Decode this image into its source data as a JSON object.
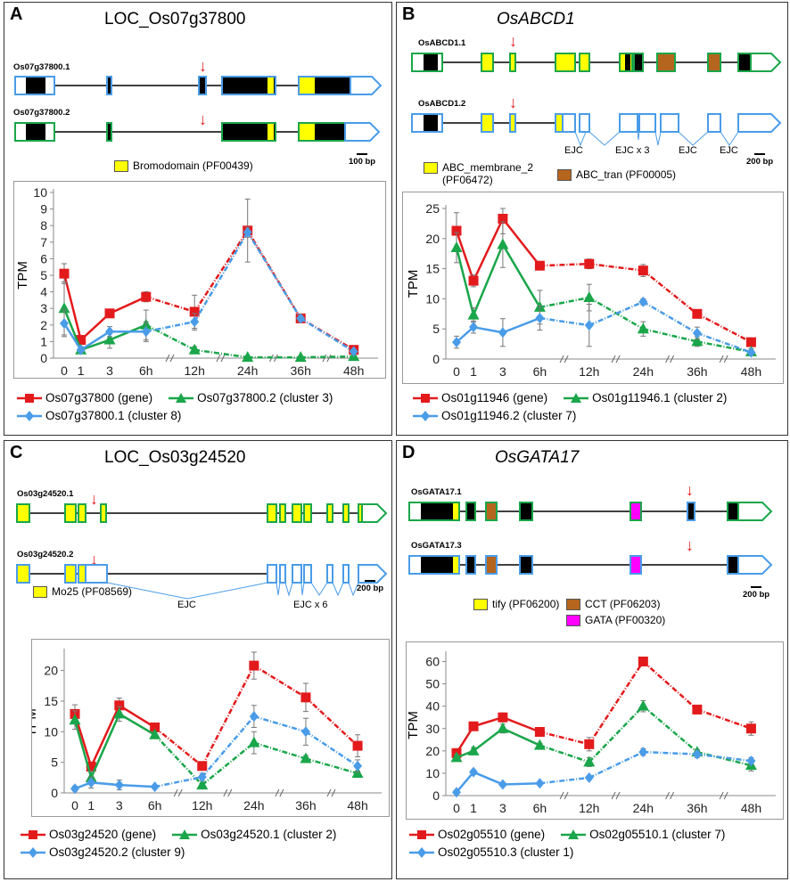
{
  "panels": [
    {
      "label": "A",
      "title": "LOC_Os07g37800",
      "title_italic": false,
      "transcripts": [
        "Os07g37800.1",
        "Os07g37800.2"
      ],
      "domains": [
        {
          "name": "Bromodomain (PF00439)",
          "color": "#ffff00"
        }
      ],
      "scale": "100 bp",
      "ejc_labels": [],
      "chart_data": {
        "type": "line",
        "ylabel": "TPM",
        "ylim": [
          0,
          10
        ],
        "yticks": [
          0,
          1,
          2,
          3,
          4,
          5,
          6,
          7,
          8,
          9,
          10
        ],
        "xtick_labels": [
          "0",
          "1",
          "3",
          "6h",
          "12h",
          "24h",
          "36h",
          "48h"
        ],
        "series": [
          {
            "name": "Os07g37800 (gene)",
            "color": "#e31a1c",
            "marker": "square",
            "values": [
              5.1,
              1.1,
              2.7,
              3.7,
              2.8,
              7.7,
              2.4,
              0.5
            ],
            "errors": [
              0.6,
              0.2,
              0.2,
              0.3,
              1.0,
              1.9,
              0.2,
              0.1
            ]
          },
          {
            "name": "Os07g37800.2 (cluster 3)",
            "color": "#1aa64a",
            "marker": "triangle",
            "values": [
              3.0,
              0.5,
              1.1,
              2.0,
              0.5,
              0.05,
              0.05,
              0.1
            ],
            "errors": [
              1.6,
              0.2,
              0.5,
              0.9,
              0.2,
              0.02,
              0.02,
              0.02
            ]
          },
          {
            "name": "Os07g37800.1 (cluster 8)",
            "color": "#4a9ce8",
            "marker": "diamond",
            "values": [
              2.1,
              0.5,
              1.6,
              1.6,
              2.2,
              7.6,
              2.4,
              0.4
            ],
            "errors": [
              0.8,
              0.1,
              0.3,
              0.6,
              0.5,
              0.3,
              0.2,
              0.1
            ]
          }
        ]
      }
    },
    {
      "label": "B",
      "title": "OsABCD1",
      "title_italic": true,
      "transcripts": [
        "OsABCD1.1",
        "OsABCD1.2"
      ],
      "domains": [
        {
          "name": "ABC_membrane_2 (PF06472)",
          "color": "#ffff00"
        },
        {
          "name": "ABC_tran (PF00005)",
          "color": "#b5651d"
        }
      ],
      "scale": "200 bp",
      "ejc_labels": [
        "EJC",
        "EJC x 3",
        "EJC",
        "EJC"
      ],
      "chart_data": {
        "type": "line",
        "ylabel": "TPM",
        "ylim": [
          0,
          25
        ],
        "yticks": [
          0,
          5,
          10,
          15,
          20,
          25
        ],
        "xtick_labels": [
          "0",
          "1",
          "3",
          "6h",
          "12h",
          "24h",
          "36h",
          "48h"
        ],
        "series": [
          {
            "name": "Os01g11946 (gene)",
            "color": "#e31a1c",
            "marker": "square",
            "values": [
              21.3,
              13.0,
              23.3,
              15.5,
              15.8,
              14.7,
              7.5,
              2.8
            ],
            "errors": [
              3.0,
              1.0,
              2.5,
              0.3,
              0.8,
              1.0,
              0.3,
              0.3
            ]
          },
          {
            "name": "Os01g11946.1 (cluster 2)",
            "color": "#1aa64a",
            "marker": "triangle",
            "values": [
              18.5,
              7.3,
              19.0,
              8.6,
              10.2,
              5.0,
              2.9,
              1.2
            ],
            "errors": [
              2.5,
              1.2,
              3.8,
              2.8,
              2.2,
              1.2,
              0.8,
              0.5
            ]
          },
          {
            "name": "Os01g11946.2 (cluster 7)",
            "color": "#4a9ce8",
            "marker": "diamond",
            "values": [
              2.8,
              5.3,
              4.4,
              6.8,
              5.6,
              9.5,
              4.3,
              1.1
            ],
            "errors": [
              1.0,
              1.0,
              2.3,
              2.0,
              3.5,
              0.5,
              1.0,
              0.3
            ]
          }
        ]
      }
    },
    {
      "label": "C",
      "title": "LOC_Os03g24520",
      "title_italic": false,
      "transcripts": [
        "Os03g24520.1",
        "Os03g24520.2"
      ],
      "domains": [
        {
          "name": "Mo25 (PF08569)",
          "color": "#ffff00"
        }
      ],
      "scale": "200 bp",
      "ejc_labels": [
        "EJC",
        "EJC x 6"
      ],
      "chart_data": {
        "type": "line",
        "ylabel": "TPM",
        "ylim": [
          0,
          23
        ],
        "yticks": [
          0,
          5,
          10,
          15,
          20
        ],
        "xtick_labels": [
          "0",
          "1",
          "3",
          "6h",
          "12h",
          "24h",
          "36h",
          "48h"
        ],
        "series": [
          {
            "name": "Os03g24520 (gene)",
            "color": "#e31a1c",
            "marker": "square",
            "values": [
              12.9,
              4.3,
              14.3,
              10.7,
              4.4,
              20.8,
              15.6,
              7.7
            ],
            "errors": [
              1.5,
              0.6,
              1.2,
              0.5,
              0.5,
              2.2,
              2.3,
              1.8
            ]
          },
          {
            "name": "Os03g24520.1 (cluster 2)",
            "color": "#1aa64a",
            "marker": "triangle",
            "values": [
              11.9,
              2.5,
              12.9,
              9.5,
              1.3,
              8.2,
              5.6,
              3.2
            ],
            "errors": [
              1.5,
              1.0,
              1.2,
              0.5,
              0.4,
              1.8,
              0.5,
              0.4
            ]
          },
          {
            "name": "Os03g24520.2 (cluster 9)",
            "color": "#4a9ce8",
            "marker": "diamond",
            "values": [
              0.7,
              1.7,
              1.3,
              1.0,
              2.6,
              12.5,
              10.0,
              4.4
            ],
            "errors": [
              0.4,
              0.9,
              0.8,
              0.2,
              0.6,
              1.8,
              2.2,
              1.0
            ]
          }
        ]
      }
    },
    {
      "label": "D",
      "title": "OsGATA17",
      "title_italic": true,
      "transcripts": [
        "OsGATA17.1",
        "OsGATA17.3"
      ],
      "domains": [
        {
          "name": "tify (PF06200)",
          "color": "#ffff00"
        },
        {
          "name": "CCT (PF06203)",
          "color": "#b5651d"
        },
        {
          "name": "GATA (PF00320)",
          "color": "#ff00ff"
        }
      ],
      "scale": "200 bp",
      "ejc_labels": [],
      "chart_data": {
        "type": "line",
        "ylabel": "TPM",
        "ylim": [
          0,
          63
        ],
        "yticks": [
          0,
          10,
          20,
          30,
          40,
          50,
          60
        ],
        "xtick_labels": [
          "0",
          "1",
          "3",
          "6h",
          "12h",
          "24h",
          "36h",
          "48h"
        ],
        "series": [
          {
            "name": "Os02g05510 (gene)",
            "color": "#e31a1c",
            "marker": "square",
            "values": [
              19.0,
              31.0,
              35.0,
              28.5,
              23.0,
              60.0,
              38.5,
              30.0
            ],
            "errors": [
              2.0,
              1.5,
              2.0,
              1.0,
              3.0,
              1.0,
              1.0,
              3.0
            ]
          },
          {
            "name": "Os02g05510.1 (cluster 7)",
            "color": "#1aa64a",
            "marker": "triangle",
            "values": [
              17.0,
              20.0,
              30.0,
              22.5,
              15.0,
              40.0,
              19.5,
              13.5
            ],
            "errors": [
              1.5,
              1.5,
              2.0,
              1.0,
              2.0,
              2.5,
              1.0,
              2.5
            ]
          },
          {
            "name": "Os02g05510.3 (cluster 1)",
            "color": "#4a9ce8",
            "marker": "diamond",
            "values": [
              1.5,
              10.5,
              5.0,
              5.5,
              8.0,
              19.5,
              18.5,
              15.5
            ],
            "errors": [
              0.5,
              1.0,
              0.5,
              0.5,
              0.5,
              1.5,
              1.5,
              1.5
            ]
          }
        ]
      }
    }
  ]
}
